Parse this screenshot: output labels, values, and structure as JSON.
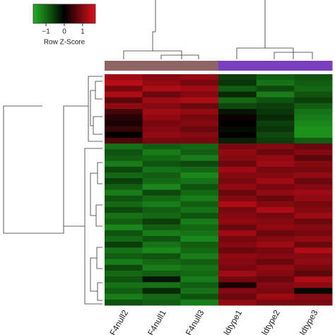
{
  "chart_data": {
    "type": "heatmap",
    "colorbar": {
      "title": "Row Z-Score",
      "lim": [
        -1.7,
        1.7
      ],
      "ticks": [
        {
          "value": -1,
          "label": "−1"
        },
        0,
        1
      ],
      "colors": [
        "#22b022",
        "#000000",
        "#e0101c"
      ]
    },
    "columns": [
      "F4null2",
      "F4null1",
      "F4null3",
      "ldtype1",
      "ldtype2",
      "ldtype3"
    ],
    "column_group_colors": [
      "#8e6464",
      "#8e6464",
      "#8e6464",
      "#7a3fbf",
      "#7a3fbf",
      "#7a3fbf"
    ],
    "values": [
      [
        1.2,
        1.0,
        1.1,
        -0.6,
        -0.9,
        -0.8
      ],
      [
        1.4,
        1.1,
        0.9,
        -0.5,
        -1.1,
        -0.9
      ],
      [
        0.9,
        1.3,
        1.2,
        -0.9,
        -0.7,
        -1.0
      ],
      [
        1.3,
        0.8,
        1.0,
        -0.4,
        -1.2,
        -0.8
      ],
      [
        0.7,
        1.2,
        1.3,
        -1.0,
        -0.8,
        -0.6
      ],
      [
        1.1,
        1.0,
        0.8,
        -0.7,
        -0.6,
        -0.9
      ],
      [
        0.5,
        1.2,
        1.1,
        -0.2,
        -0.5,
        -1.1
      ],
      [
        0.3,
        1.1,
        0.9,
        0.1,
        -0.4,
        -1.2
      ],
      [
        0.2,
        0.9,
        1.0,
        0.0,
        -0.6,
        -1.3
      ],
      [
        0.4,
        1.0,
        0.8,
        -0.1,
        -0.5,
        -1.4
      ],
      [
        0.0,
        1.1,
        1.0,
        0.0,
        -0.7,
        -1.4
      ],
      [
        0.6,
        0.9,
        0.9,
        -0.3,
        -0.6,
        -0.9
      ],
      [
        -1.1,
        -0.9,
        -1.0,
        0.9,
        1.0,
        0.8
      ],
      [
        -0.8,
        -1.2,
        -0.9,
        1.1,
        0.8,
        1.0
      ],
      [
        -0.9,
        -1.0,
        -1.2,
        1.0,
        1.1,
        0.7
      ],
      [
        -1.2,
        -0.8,
        -0.7,
        0.8,
        1.2,
        1.0
      ],
      [
        -0.7,
        -1.1,
        -1.0,
        1.2,
        0.9,
        0.9
      ],
      [
        -1.0,
        -0.9,
        -1.3,
        1.0,
        1.0,
        1.1
      ],
      [
        -0.6,
        -1.0,
        -1.1,
        0.9,
        1.2,
        0.8
      ],
      [
        -0.9,
        -1.3,
        -0.8,
        1.1,
        0.9,
        1.0
      ],
      [
        -1.2,
        -0.7,
        -1.0,
        0.8,
        1.1,
        1.2
      ],
      [
        -0.8,
        -1.0,
        -1.2,
        1.0,
        0.8,
        1.1
      ],
      [
        -1.0,
        -1.2,
        -0.9,
        1.3,
        1.0,
        0.9
      ],
      [
        -0.7,
        -0.9,
        -1.1,
        0.9,
        1.3,
        1.0
      ],
      [
        -1.1,
        -1.0,
        -0.8,
        1.0,
        0.9,
        1.2
      ],
      [
        -0.9,
        -0.6,
        -1.2,
        1.1,
        1.0,
        0.8
      ],
      [
        -1.3,
        -0.9,
        -1.0,
        0.8,
        1.1,
        1.0
      ],
      [
        -0.8,
        -1.2,
        -1.1,
        1.2,
        0.8,
        0.9
      ],
      [
        -1.0,
        -0.8,
        -1.3,
        0.9,
        1.0,
        1.1
      ],
      [
        -0.6,
        -1.1,
        -0.9,
        1.0,
        1.2,
        0.8
      ],
      [
        -1.1,
        -1.3,
        -1.0,
        0.8,
        0.9,
        1.3
      ],
      [
        -0.9,
        -0.8,
        -1.2,
        1.1,
        1.0,
        1.0
      ],
      [
        -1.2,
        -1.0,
        -0.9,
        1.0,
        0.8,
        1.1
      ],
      [
        -0.7,
        -1.2,
        -1.1,
        0.9,
        1.1,
        0.9
      ],
      [
        -1.0,
        -0.9,
        -1.0,
        1.2,
        1.0,
        0.7
      ],
      [
        -0.8,
        -0.2,
        -1.2,
        0.9,
        0.8,
        1.3
      ],
      [
        -1.1,
        -1.1,
        -0.9,
        0.2,
        1.0,
        1.1
      ],
      [
        -0.9,
        -0.4,
        -1.1,
        1.0,
        0.9,
        -0.1
      ],
      [
        -1.2,
        -1.0,
        -0.8,
        0.8,
        1.2,
        1.0
      ],
      [
        -0.8,
        -0.9,
        -1.2,
        1.1,
        0.9,
        0.9
      ]
    ]
  }
}
